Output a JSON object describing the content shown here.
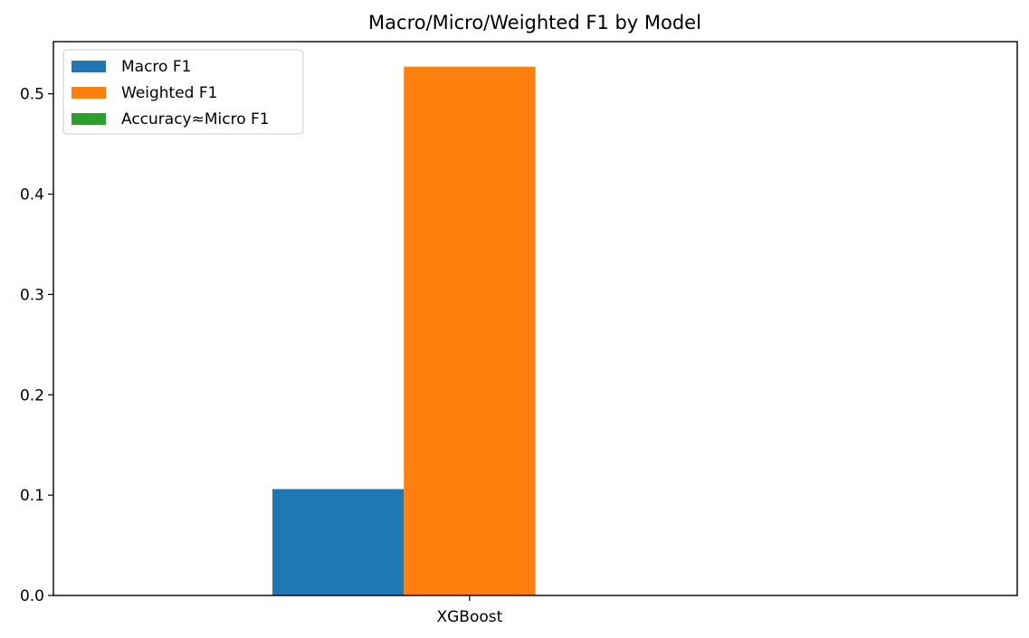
{
  "chart_data": {
    "type": "bar",
    "title": "Macro/Micro/Weighted F1 by Model",
    "xlabel": "",
    "ylabel": "",
    "categories": [
      "XGBoost"
    ],
    "series": [
      {
        "name": "Macro F1",
        "values": [
          0.106
        ],
        "color": "#1f77b4"
      },
      {
        "name": "Weighted F1",
        "values": [
          0.527
        ],
        "color": "#ff7f0e"
      },
      {
        "name": "Accuracy≈Micro F1",
        "values": [
          0.0
        ],
        "color": "#2ca02c"
      }
    ],
    "ylim": [
      0,
      0.552
    ],
    "yticks": [
      0.0,
      0.1,
      0.2,
      0.3,
      0.4,
      0.5
    ],
    "ytick_labels": [
      "0.0",
      "0.1",
      "0.2",
      "0.3",
      "0.4",
      "0.5"
    ],
    "grid": false,
    "legend_position": "upper-left"
  }
}
